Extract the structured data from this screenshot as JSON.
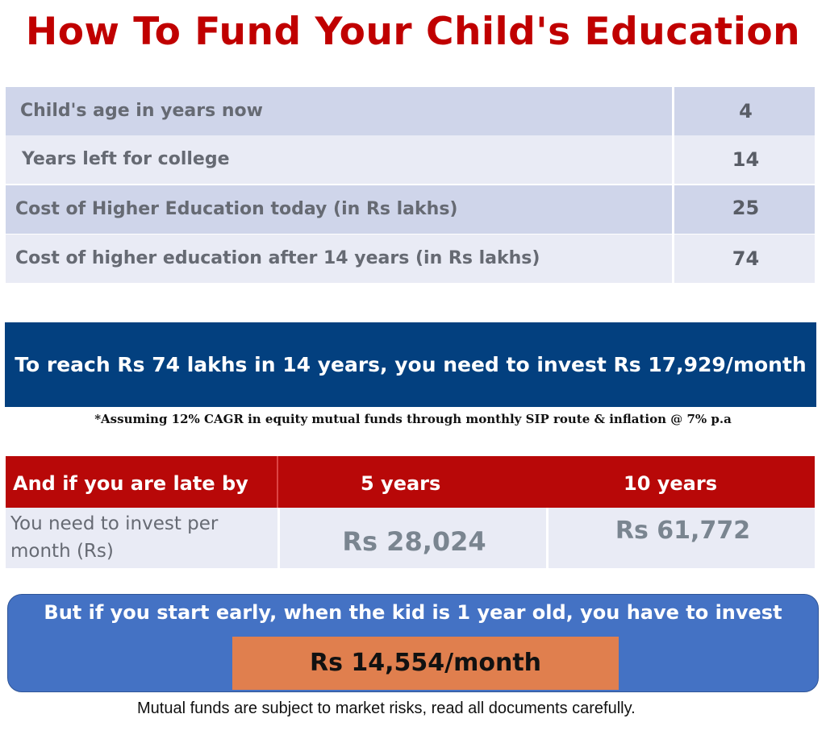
{
  "title": "How To Fund Your Child's Education",
  "inputs": [
    {
      "label": "Child's age in years now",
      "value": "4"
    },
    {
      "label": "Years left for college",
      "value": "14"
    },
    {
      "label": "Cost of Higher Education today  (in Rs lakhs)",
      "value": "25"
    },
    {
      "label": "Cost of higher education after 14 years (in Rs lakhs)",
      "value": "74"
    }
  ],
  "banner": "To reach Rs 74 lakhs in 14 years, you need to invest Rs 17,929/month",
  "footnote": "*Assuming 12% CAGR in equity mutual funds through monthly SIP route & inflation @ 7% p.a",
  "late": {
    "header_label": "And if you are late by",
    "columns": [
      "5 years",
      "10 years"
    ],
    "row_label": "You need to invest per month (Rs)",
    "values": [
      "Rs 28,024",
      "Rs 61,772"
    ]
  },
  "early": {
    "text": "But if you start early, when the kid is 1 year old, you have to invest",
    "amount": "Rs 14,554/month"
  },
  "disclaimer": "Mutual funds are subject to market risks, read all documents carefully.",
  "colors": {
    "title": "#c00000",
    "row_dark": "#cfd5ea",
    "row_light": "#e9ebf5",
    "banner": "#03407f",
    "late_header": "#b80808",
    "early_box": "#4472c4",
    "early_amount": "#e07f4e"
  }
}
